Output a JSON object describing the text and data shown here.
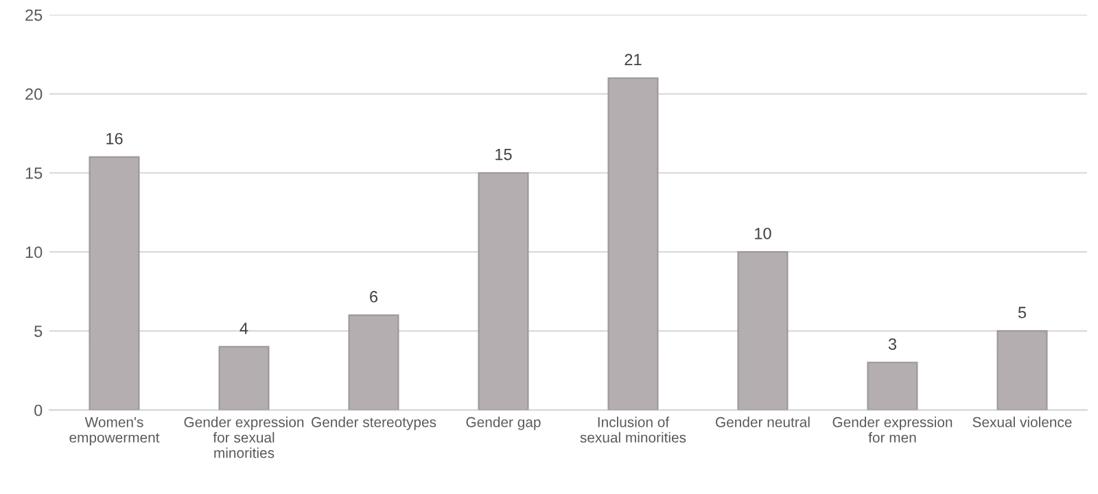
{
  "chart_data": {
    "type": "bar",
    "categories": [
      "Women's empowerment",
      "Gender expression for sexual minorities",
      "Gender stereotypes",
      "Gender gap",
      "Inclusion of sexual minorities",
      "Gender neutral",
      "Gender expression for men",
      "Sexual violence"
    ],
    "values": [
      16,
      4,
      6,
      15,
      21,
      10,
      3,
      5
    ],
    "color": "#b4aeb1",
    "ylim": [
      0,
      25
    ],
    "yticks": [
      0,
      5,
      10,
      15,
      20,
      25
    ],
    "grid": "y",
    "data_labels": true
  }
}
